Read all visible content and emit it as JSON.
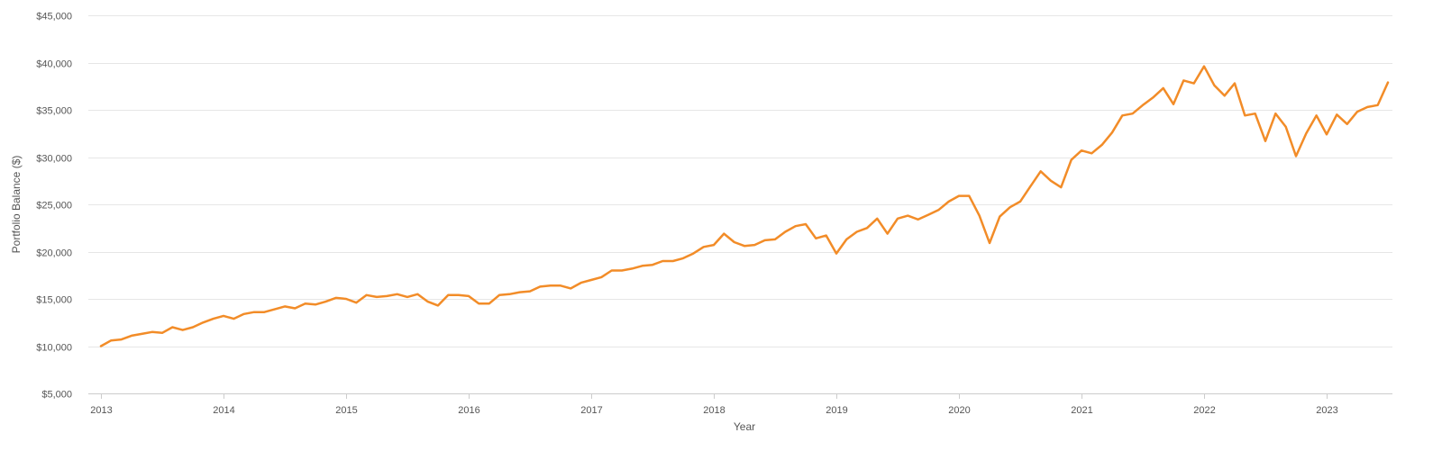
{
  "chart_data": {
    "type": "line",
    "title": "",
    "xlabel": "Year",
    "ylabel": "Portfolio Balance ($)",
    "xlim": [
      2013.0,
      2023.5
    ],
    "ylim": [
      5000,
      45000
    ],
    "grid": true,
    "legend": "none",
    "x_ticks": [
      2013,
      2014,
      2015,
      2016,
      2017,
      2018,
      2019,
      2020,
      2021,
      2022,
      2023
    ],
    "x_tick_labels": [
      "2013",
      "2014",
      "2015",
      "2016",
      "2017",
      "2018",
      "2019",
      "2020",
      "2021",
      "2022",
      "2023"
    ],
    "y_ticks": [
      5000,
      10000,
      15000,
      20000,
      25000,
      30000,
      35000,
      40000,
      45000
    ],
    "y_tick_labels": [
      "$5,000",
      "$10,000",
      "$15,000",
      "$20,000",
      "$25,000",
      "$30,000",
      "$35,000",
      "$40,000",
      "$45,000"
    ],
    "series": [
      {
        "color": "#f28c28",
        "x": [
          2013.0,
          2013.083,
          2013.167,
          2013.25,
          2013.333,
          2013.417,
          2013.5,
          2013.583,
          2013.667,
          2013.75,
          2013.833,
          2013.917,
          2014.0,
          2014.083,
          2014.167,
          2014.25,
          2014.333,
          2014.417,
          2014.5,
          2014.583,
          2014.667,
          2014.75,
          2014.833,
          2014.917,
          2015.0,
          2015.083,
          2015.167,
          2015.25,
          2015.333,
          2015.417,
          2015.5,
          2015.583,
          2015.667,
          2015.75,
          2015.833,
          2015.917,
          2016.0,
          2016.083,
          2016.167,
          2016.25,
          2016.333,
          2016.417,
          2016.5,
          2016.583,
          2016.667,
          2016.75,
          2016.833,
          2016.917,
          2017.0,
          2017.083,
          2017.167,
          2017.25,
          2017.333,
          2017.417,
          2017.5,
          2017.583,
          2017.667,
          2017.75,
          2017.833,
          2017.917,
          2018.0,
          2018.083,
          2018.167,
          2018.25,
          2018.333,
          2018.417,
          2018.5,
          2018.583,
          2018.667,
          2018.75,
          2018.833,
          2018.917,
          2019.0,
          2019.083,
          2019.167,
          2019.25,
          2019.333,
          2019.417,
          2019.5,
          2019.583,
          2019.667,
          2019.75,
          2019.833,
          2019.917,
          2020.0,
          2020.083,
          2020.167,
          2020.25,
          2020.333,
          2020.417,
          2020.5,
          2020.583,
          2020.667,
          2020.75,
          2020.833,
          2020.917,
          2021.0,
          2021.083,
          2021.167,
          2021.25,
          2021.333,
          2021.417,
          2021.5,
          2021.583,
          2021.667,
          2021.75,
          2021.833,
          2021.917,
          2022.0,
          2022.083,
          2022.167,
          2022.25,
          2022.333,
          2022.417,
          2022.5,
          2022.583,
          2022.667,
          2022.75,
          2022.833,
          2022.917,
          2023.0,
          2023.083,
          2023.167,
          2023.25,
          2023.333,
          2023.417,
          2023.5
        ],
        "y": [
          10000,
          10600,
          10700,
          11100,
          11300,
          11500,
          11400,
          12000,
          11700,
          12000,
          12500,
          12900,
          13200,
          12900,
          13400,
          13600,
          13600,
          13900,
          14200,
          14000,
          14500,
          14400,
          14700,
          15100,
          15000,
          14600,
          15400,
          15200,
          15300,
          15500,
          15200,
          15500,
          14700,
          14300,
          15400,
          15400,
          15300,
          14500,
          14500,
          15400,
          15500,
          15700,
          15800,
          16300,
          16400,
          16400,
          16100,
          16700,
          17000,
          17300,
          18000,
          18000,
          18200,
          18500,
          18600,
          19000,
          19000,
          19300,
          19800,
          20500,
          20700,
          21900,
          21000,
          20600,
          20700,
          21200,
          21300,
          22100,
          22700,
          22900,
          21400,
          21700,
          19800,
          21300,
          22100,
          22500,
          23500,
          21900,
          23500,
          23800,
          23400,
          23900,
          24400,
          25300,
          25900,
          25900,
          23800,
          20900,
          23700,
          24700,
          25300,
          26900,
          28500,
          27500,
          26800,
          29700,
          30700,
          30400,
          31300,
          32600,
          34400,
          34600,
          35500,
          36300,
          37300,
          35600,
          38100,
          37800,
          39600,
          37600,
          36500,
          37800,
          34400,
          34600,
          31700,
          34600,
          33200,
          30100,
          32500,
          34400,
          32400,
          34500,
          33500,
          34800,
          35300,
          35500,
          37900
        ]
      }
    ]
  }
}
